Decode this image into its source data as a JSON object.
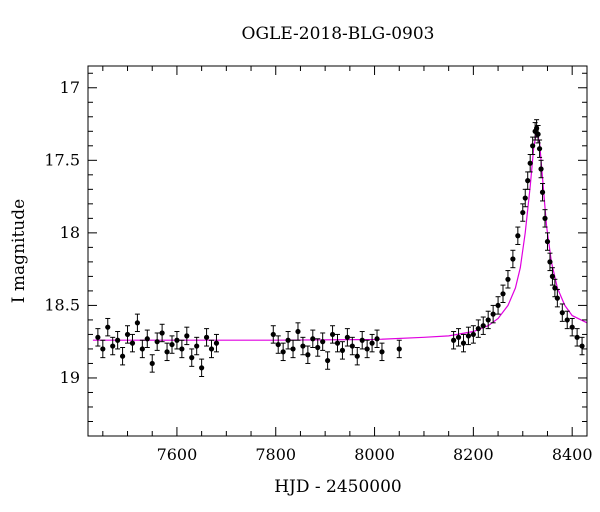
{
  "chart_data": {
    "type": "scatter",
    "title": "OGLE-2018-BLG-0903",
    "xlabel": "HJD - 2450000",
    "ylabel": "I magnitude",
    "xlim": [
      7420,
      8430
    ],
    "ylim": [
      19.4,
      16.85
    ],
    "y_inverted": true,
    "x_ticks": [
      7600,
      7800,
      8000,
      8200,
      8400
    ],
    "x_tick_labels": [
      "7600",
      "7800",
      "8000",
      "8200",
      "8400"
    ],
    "y_ticks": [
      17,
      17.5,
      18,
      18.5,
      19
    ],
    "y_tick_labels": [
      "17",
      "17.5",
      "18",
      "18.5",
      "19"
    ],
    "grid": false,
    "colors": {
      "data": "#000000",
      "model": "#e000e0"
    },
    "series": [
      {
        "kind": "points_with_errorbars",
        "x": [
          7440,
          7450,
          7460,
          7470,
          7480,
          7490,
          7500,
          7510,
          7520,
          7530,
          7540,
          7550,
          7560,
          7570,
          7580,
          7590,
          7600,
          7610,
          7620,
          7630,
          7640,
          7650,
          7660,
          7670,
          7680,
          7795,
          7805,
          7815,
          7825,
          7835,
          7845,
          7855,
          7865,
          7875,
          7885,
          7895,
          7905,
          7915,
          7925,
          7935,
          7945,
          7955,
          7965,
          7975,
          7985,
          7995,
          8005,
          8015,
          8050,
          8160,
          8170,
          8180,
          8190,
          8200,
          8210,
          8220,
          8230,
          8240,
          8250,
          8260,
          8270,
          8280,
          8290,
          8300,
          8305,
          8310,
          8315,
          8320,
          8325,
          8328,
          8331,
          8334,
          8337,
          8340,
          8345,
          8350,
          8355,
          8360,
          8365,
          8370,
          8380,
          8390,
          8400,
          8410,
          8420
        ],
        "y": [
          18.72,
          18.8,
          18.65,
          18.78,
          18.74,
          18.85,
          18.7,
          18.76,
          18.62,
          18.8,
          18.73,
          18.9,
          18.75,
          18.69,
          18.82,
          18.77,
          18.74,
          18.8,
          18.71,
          18.86,
          18.78,
          18.93,
          18.72,
          18.8,
          18.76,
          18.7,
          18.77,
          18.82,
          18.74,
          18.8,
          18.68,
          18.78,
          18.84,
          18.73,
          18.79,
          18.75,
          18.88,
          18.7,
          18.76,
          18.81,
          18.72,
          18.78,
          18.85,
          18.74,
          18.8,
          18.76,
          18.73,
          18.82,
          18.8,
          18.74,
          18.72,
          18.76,
          18.71,
          18.7,
          18.66,
          18.64,
          18.6,
          18.56,
          18.5,
          18.42,
          18.32,
          18.18,
          18.02,
          17.86,
          17.76,
          17.64,
          17.52,
          17.4,
          17.3,
          17.28,
          17.32,
          17.42,
          17.56,
          17.72,
          17.9,
          18.06,
          18.2,
          18.3,
          18.38,
          18.45,
          18.55,
          18.6,
          18.65,
          18.72,
          18.78
        ],
        "y_err": 0.06
      },
      {
        "kind": "model_curve",
        "name": "",
        "x": [
          7430,
          7600,
          7800,
          8000,
          8100,
          8150,
          8200,
          8230,
          8250,
          8270,
          8285,
          8295,
          8305,
          8315,
          8322,
          8328,
          8334,
          8340,
          8348,
          8358,
          8370,
          8385,
          8400,
          8430
        ],
        "y": [
          18.74,
          18.74,
          18.74,
          18.735,
          18.72,
          18.71,
          18.68,
          18.64,
          18.59,
          18.5,
          18.38,
          18.24,
          18.0,
          17.68,
          17.42,
          17.3,
          17.38,
          17.62,
          17.95,
          18.2,
          18.38,
          18.5,
          18.57,
          18.62
        ]
      }
    ]
  }
}
